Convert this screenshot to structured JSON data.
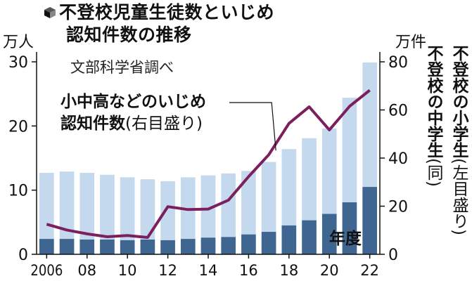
{
  "title": "不登校児童生徒数といじめ認知件数の推移",
  "title_line1": "不登校児童生徒数といじめ",
  "title_line2": "認知件数の推移",
  "source": "文部科学省調べ",
  "left_unit": "万人",
  "right_unit": "万件",
  "x_axis_label": "年度",
  "legend": {
    "line_label_1": "小中高などのいじめ",
    "line_label_2": "認知件数",
    "line_label_paren": "(右目盛り)",
    "junior_high_main": "不登校の中学生",
    "junior_high_paren": "(同)",
    "elementary_main": "不登校の小学生",
    "elementary_paren": "(左目盛り)"
  },
  "colors": {
    "elementary": "#c5d9ee",
    "junior_high": "#3f6690",
    "line": "#7b1f5e"
  },
  "chart_data": {
    "type": "bar+line",
    "x": [
      "2006",
      "2007",
      "2008",
      "2009",
      "2010",
      "2011",
      "2012",
      "2013",
      "2014",
      "2015",
      "2016",
      "2017",
      "2018",
      "2019",
      "2020",
      "2021",
      "2022"
    ],
    "x_tick_labels": [
      "2006",
      "08",
      "10",
      "12",
      "14",
      "16",
      "18",
      "20",
      "22"
    ],
    "x_tick_years": [
      2006,
      2008,
      2010,
      2012,
      2014,
      2016,
      2018,
      2020,
      2022
    ],
    "left_axis": {
      "unit": "万人",
      "ylim": [
        0,
        30
      ],
      "ticks": [
        0,
        10,
        20,
        30
      ]
    },
    "right_axis": {
      "unit": "万件",
      "ylim": [
        0,
        80
      ],
      "ticks": [
        0,
        20,
        40,
        60,
        80
      ]
    },
    "series": [
      {
        "name": "不登校の小学生",
        "kind": "bar-stacked",
        "axis": "left",
        "values": [
          2.4,
          2.4,
          2.3,
          2.3,
          2.2,
          2.3,
          2.2,
          2.4,
          2.6,
          2.7,
          3.1,
          3.5,
          4.5,
          5.3,
          6.3,
          8.1,
          10.5
        ]
      },
      {
        "name": "不登校の中学生",
        "kind": "bar-stacked",
        "axis": "left",
        "values": [
          10.3,
          10.5,
          10.4,
          10.1,
          9.8,
          9.4,
          9.2,
          9.6,
          9.7,
          9.9,
          9.9,
          10.9,
          11.9,
          12.8,
          13.3,
          16.3,
          19.4
        ]
      },
      {
        "name": "小中高などのいじめ認知件数",
        "kind": "line",
        "axis": "right",
        "values": [
          12.5,
          10.1,
          8.5,
          7.3,
          7.8,
          7.0,
          19.8,
          18.6,
          18.8,
          22.5,
          32.3,
          41.4,
          54.4,
          61.3,
          51.7,
          61.5,
          68.2
        ]
      }
    ]
  }
}
